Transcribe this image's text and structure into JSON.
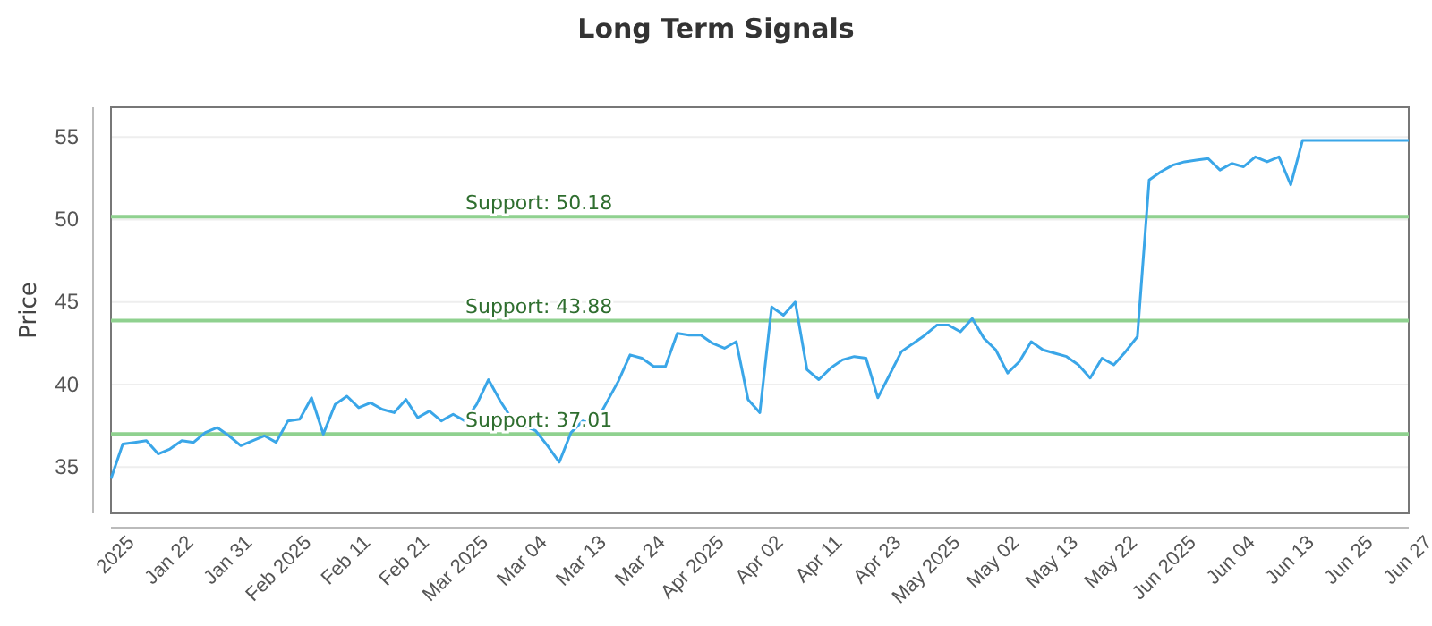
{
  "chart_data": {
    "type": "line",
    "title": "Long Term Signals",
    "ylabel": "Price",
    "categories": [
      "2025",
      null,
      null,
      null,
      null,
      "Jan 22",
      null,
      null,
      null,
      null,
      "Jan 31",
      null,
      null,
      null,
      null,
      "Feb 2025",
      null,
      null,
      null,
      null,
      "Feb 11",
      null,
      null,
      null,
      null,
      "Feb 21",
      null,
      null,
      null,
      null,
      "Mar 2025",
      null,
      null,
      null,
      null,
      "Mar 04",
      null,
      null,
      null,
      null,
      "Mar 13",
      null,
      null,
      null,
      null,
      "Mar 24",
      null,
      null,
      null,
      null,
      "Apr 2025",
      null,
      null,
      null,
      null,
      "Apr 02",
      null,
      null,
      null,
      null,
      "Apr 11",
      null,
      null,
      null,
      null,
      "Apr 23",
      null,
      null,
      null,
      null,
      "May 2025",
      null,
      null,
      null,
      null,
      "May 02",
      null,
      null,
      null,
      null,
      "May 13",
      null,
      null,
      null,
      null,
      "May 22",
      null,
      null,
      null,
      null,
      "Jun 2025",
      null,
      null,
      null,
      null,
      "Jun 04",
      null,
      null,
      null,
      null,
      "Jun 13",
      null,
      null,
      null,
      null,
      "Jun 25",
      null,
      null,
      null,
      null,
      "Jun 27"
    ],
    "series": [
      {
        "color": "#3aa6e8",
        "values": [
          34.3,
          36.4,
          36.5,
          36.6,
          35.8,
          36.1,
          36.6,
          36.5,
          37.1,
          37.4,
          36.9,
          36.3,
          36.6,
          36.9,
          36.5,
          37.8,
          37.9,
          39.2,
          37.0,
          38.8,
          39.3,
          38.6,
          38.9,
          38.5,
          38.3,
          39.1,
          38.0,
          38.4,
          37.8,
          38.2,
          37.8,
          38.8,
          40.3,
          39.0,
          37.9,
          37.5,
          37.2,
          36.3,
          35.3,
          37.1,
          37.8,
          37.6,
          38.9,
          40.2,
          41.8,
          41.6,
          41.1,
          41.1,
          43.1,
          43.0,
          43.0,
          42.5,
          42.2,
          42.6,
          39.1,
          38.3,
          44.7,
          44.2,
          45.0,
          40.9,
          40.3,
          41.0,
          41.5,
          41.7,
          41.6,
          39.2,
          40.6,
          42.0,
          42.5,
          43.0,
          43.6,
          43.6,
          43.2,
          44.0,
          42.8,
          42.1,
          40.7,
          41.4,
          42.6,
          42.1,
          41.9,
          41.7,
          41.2,
          40.4,
          41.6,
          41.2,
          42.0,
          42.9,
          52.4,
          52.9,
          53.3,
          53.5,
          53.6,
          53.7,
          53.0,
          53.4,
          53.2,
          53.8,
          53.5,
          53.8,
          52.1,
          54.8,
          54.8,
          54.8,
          54.8,
          54.8,
          54.8,
          54.8,
          54.8,
          54.8,
          54.8
        ]
      }
    ],
    "ylim": [
      32.2,
      56.8
    ],
    "yticks": [
      35,
      40,
      45,
      50,
      55
    ],
    "grid": "y",
    "marker": "none",
    "line_style": "solid",
    "ref_lines": [
      {
        "axis": "y",
        "value": 50.18,
        "label": "Support: 50.18",
        "color": "#8fd18f"
      },
      {
        "axis": "y",
        "value": 43.88,
        "label": "Support: 43.88",
        "color": "#8fd18f"
      },
      {
        "axis": "y",
        "value": 37.01,
        "label": "Support: 37.01",
        "color": "#8fd18f"
      }
    ]
  }
}
